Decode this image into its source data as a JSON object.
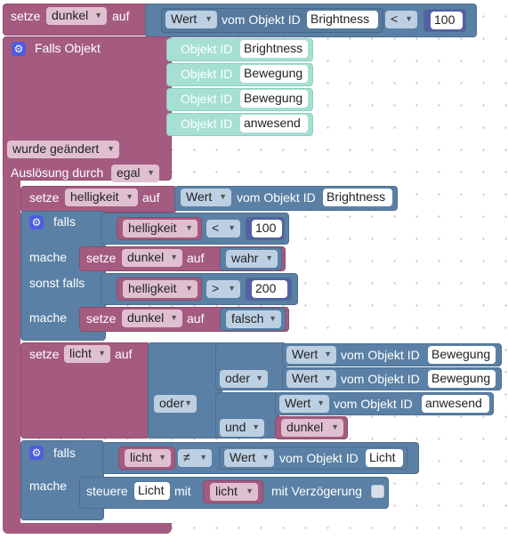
{
  "b1": {
    "setze": "setze",
    "var": "dunkel",
    "auf": "auf",
    "wert": "Wert",
    "vom": "vom Objekt ID",
    "obj": "Brightness",
    "op": "<",
    "num": "100"
  },
  "b2": {
    "title": "Falls Objekt",
    "objid": "Objekt ID",
    "ids": [
      "Brightness",
      "Bewegung",
      "Bewegung",
      "anwesend"
    ],
    "changed": "wurde geändert",
    "trigger": "Auslösung durch",
    "egal": "egal"
  },
  "b3": {
    "setze": "setze",
    "var": "helligkeit",
    "auf": "auf",
    "wert": "Wert",
    "vom": "vom Objekt ID",
    "obj": "Brightness"
  },
  "b4": {
    "falls": "falls",
    "var": "helligkeit",
    "op": "<",
    "num": "100",
    "mache": "mache",
    "setze": "setze",
    "target": "dunkel",
    "auf": "auf",
    "val": "wahr",
    "sonst": "sonst falls",
    "var2": "helligkeit",
    "op2": ">",
    "num2": "200",
    "mache2": "mache",
    "setze2": "setze",
    "target2": "dunkel",
    "auf2": "auf",
    "val2": "falsch"
  },
  "b5": {
    "setze": "setze",
    "var": "licht",
    "auf": "auf",
    "oder": "oder",
    "oder2": "oder",
    "und": "und",
    "wert": "Wert",
    "vom": "vom Objekt ID",
    "obj1": "Bewegung",
    "obj2": "Bewegung",
    "obj3": "anwesend",
    "dunkel": "dunkel"
  },
  "b6": {
    "falls": "falls",
    "var": "licht",
    "op": "≠",
    "wert": "Wert",
    "vom": "vom Objekt ID",
    "obj": "Licht",
    "mache": "mache",
    "steuere": "steuere",
    "target": "Licht",
    "mit": "mit",
    "var2": "licht",
    "delay": "mit Verzögerung"
  },
  "colors": {
    "variable": "#a55b80",
    "logic": "#5b80a5",
    "trigger": "#a5e0d2",
    "gear": "#4c5de0"
  },
  "icons": {
    "gear": "gear-icon",
    "dropdown": "dropdown-arrow-icon"
  }
}
